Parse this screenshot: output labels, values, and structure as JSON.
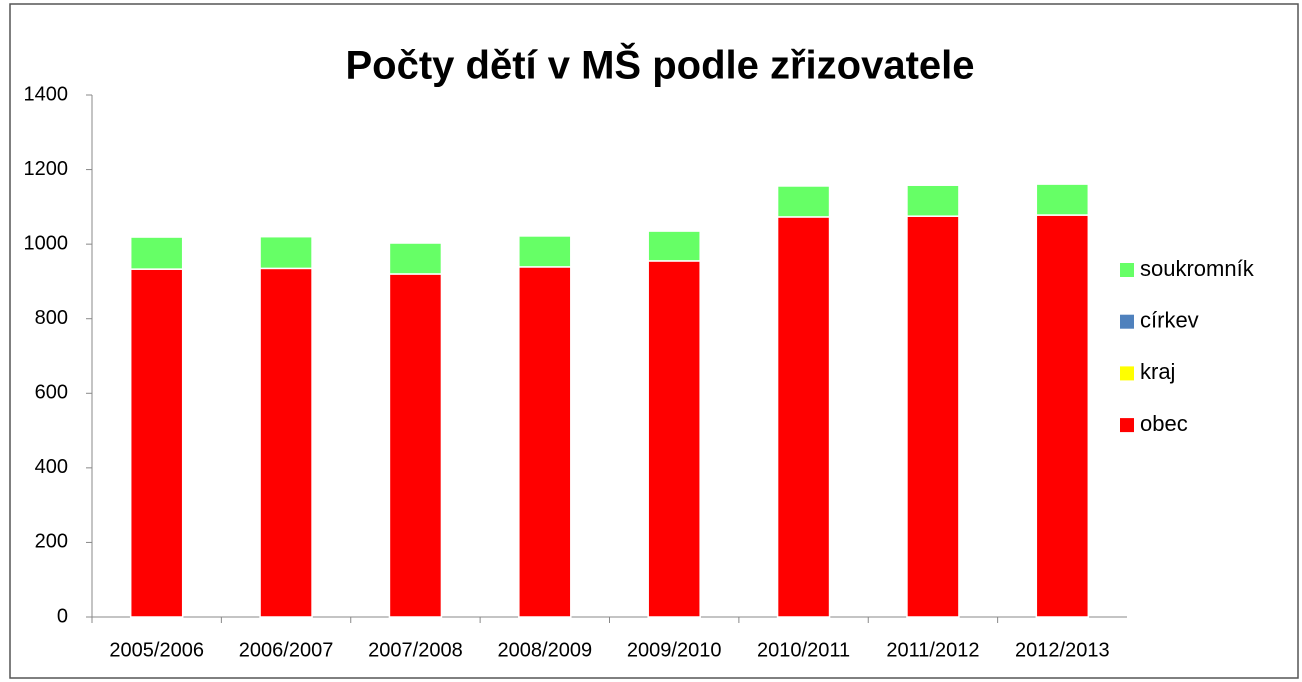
{
  "chart_data": {
    "type": "stacked_bar",
    "title": "Počty dětí v MŠ podle zřizovatele",
    "categories": [
      "2005/2006",
      "2006/2007",
      "2007/2008",
      "2008/2009",
      "2009/2010",
      "2010/2011",
      "2011/2012",
      "2012/2013"
    ],
    "series": [
      {
        "name": "obec",
        "color": "#ff0000",
        "values": [
          933,
          935,
          920,
          939,
          955,
          1073,
          1075,
          1078
        ]
      },
      {
        "name": "kraj",
        "color": "#ffff00",
        "values": [
          0,
          0,
          0,
          0,
          0,
          0,
          0,
          0
        ]
      },
      {
        "name": "církev",
        "color": "#4f81bd",
        "values": [
          0,
          0,
          0,
          0,
          0,
          0,
          0,
          0
        ]
      },
      {
        "name": "soukromník",
        "color": "#66ff66",
        "values": [
          86,
          85,
          83,
          83,
          80,
          83,
          83,
          83
        ]
      }
    ],
    "ylim": [
      0,
      1400
    ],
    "yticks": [
      0,
      200,
      400,
      600,
      800,
      1000,
      1200,
      1400
    ],
    "legend": "right"
  }
}
